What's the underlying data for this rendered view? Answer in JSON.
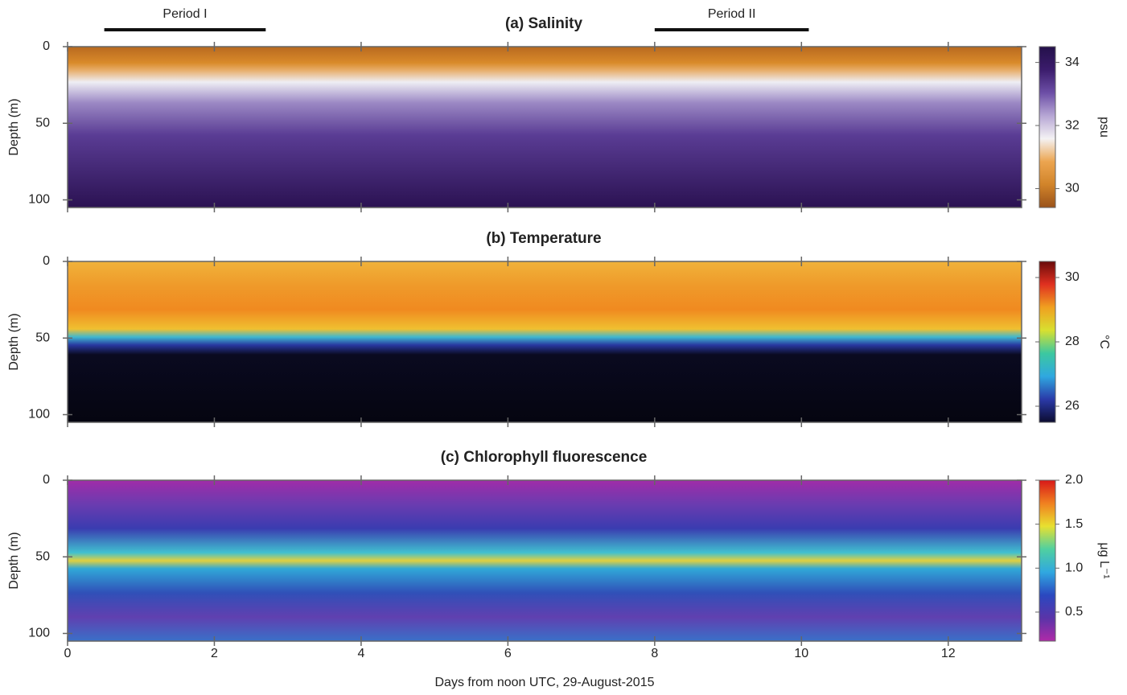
{
  "chart_data": [
    {
      "type": "heatmap",
      "title": "(a) Salinity",
      "ylabel": "Depth (m)",
      "xlim": [
        0,
        13
      ],
      "xticks": [
        0,
        2,
        4,
        6,
        8,
        10,
        12
      ],
      "show_xtick_labels": false,
      "ylim": [
        0,
        105
      ],
      "yticks": [
        0,
        50,
        100
      ],
      "periods": [
        {
          "label": "Period I",
          "x": [
            0.5,
            2.7
          ]
        },
        {
          "label": "Period II",
          "x": [
            8,
            10.1
          ]
        }
      ],
      "colorbar": {
        "label": "psu",
        "lim": [
          29.4,
          34.5
        ],
        "ticks": [
          30,
          32,
          34
        ],
        "colors": [
          "#9a521a",
          "#d1842a",
          "#eca550",
          "#f4f2f4",
          "#b6a6d4",
          "#6c4ea6",
          "#3b1c6c",
          "#24104a"
        ]
      }
    },
    {
      "type": "heatmap",
      "title": "(b) Temperature",
      "ylabel": "Depth (m)",
      "xlim": [
        0,
        13
      ],
      "xticks": [
        0,
        2,
        4,
        6,
        8,
        10,
        12
      ],
      "show_xtick_labels": false,
      "ylim": [
        0,
        105
      ],
      "yticks": [
        0,
        50,
        100
      ],
      "colorbar": {
        "label": "°C",
        "lim": [
          25.5,
          30.5
        ],
        "ticks": [
          26,
          28,
          30
        ],
        "colors": [
          "#0c0c30",
          "#2a3aa8",
          "#2fa8e0",
          "#3cc8a0",
          "#d8e030",
          "#f0a020",
          "#e03020",
          "#6a0a0a"
        ]
      }
    },
    {
      "type": "heatmap",
      "title": "(c) Chlorophyll fluorescence",
      "ylabel": "Depth (m)",
      "xlabel": "Days from noon UTC, 29-August-2015",
      "xlim": [
        0,
        13
      ],
      "xticks": [
        0,
        2,
        4,
        6,
        8,
        10,
        12
      ],
      "show_xtick_labels": true,
      "ylim": [
        0,
        105
      ],
      "yticks": [
        0,
        50,
        100
      ],
      "colorbar": {
        "label": "μg L⁻¹",
        "lim": [
          0.17,
          2.0
        ],
        "ticks": [
          {
            "value": 0.5,
            "label": "0.5"
          },
          {
            "value": 1.0,
            "label": "1.0"
          },
          {
            "value": 1.5,
            "label": "1.5"
          },
          {
            "value": 2.0,
            "label": "2.0"
          }
        ],
        "colors": [
          "#b02aa8",
          "#5a34a8",
          "#2a48c0",
          "#30a8e0",
          "#50d0a0",
          "#e8e030",
          "#f08020",
          "#d81818"
        ]
      }
    }
  ]
}
